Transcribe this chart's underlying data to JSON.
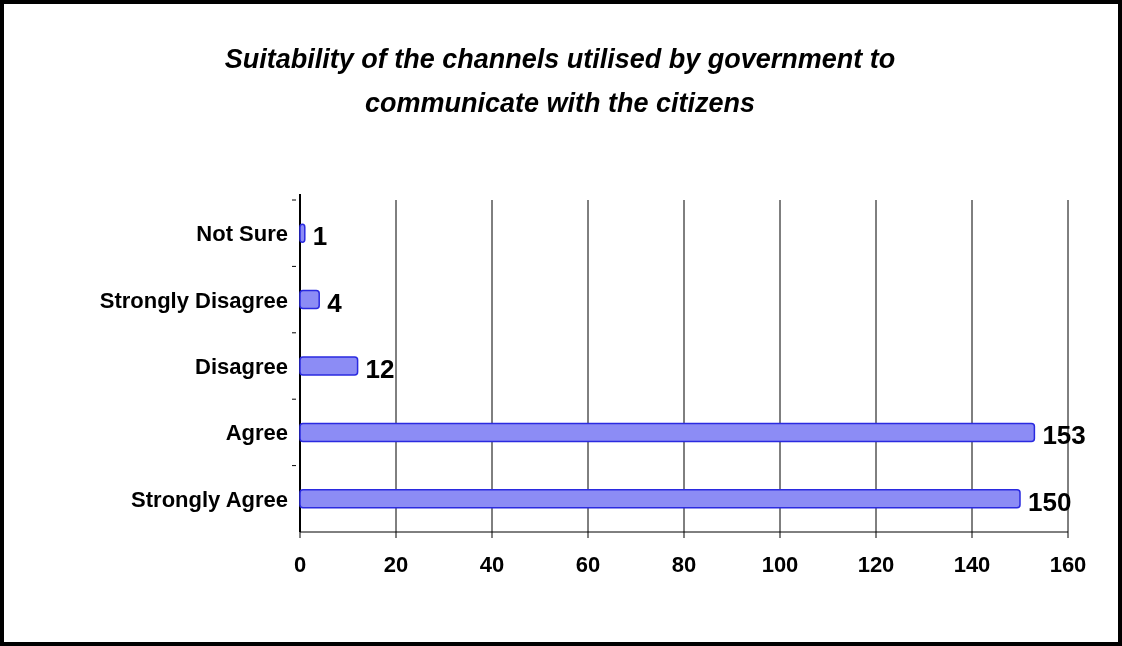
{
  "chart_data": {
    "type": "bar",
    "orientation": "horizontal",
    "title": "Suitability of the channels utilised by government to communicate with the citizens",
    "categories": [
      "Not Sure",
      "Strongly Disagree",
      "Disagree",
      "Agree",
      "Strongly Agree"
    ],
    "values": [
      1,
      4,
      12,
      153,
      150
    ],
    "color": "#8c8cf5",
    "xlim": [
      0,
      160
    ],
    "xticks": [
      0,
      20,
      40,
      60,
      80,
      100,
      120,
      140,
      160
    ],
    "grid": "x",
    "data_labels": true
  }
}
